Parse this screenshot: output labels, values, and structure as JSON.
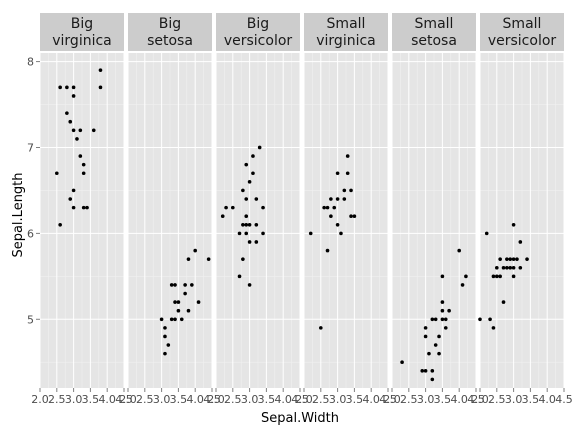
{
  "chart_data": {
    "type": "scatter",
    "facet": "panels",
    "xlabel": "Sepal.Width",
    "ylabel": "Sepal.Length",
    "xlim": [
      2.0,
      4.5
    ],
    "ylim": [
      4.2,
      8.1
    ],
    "x_ticks": [
      "2.0",
      "2.5",
      "3.0",
      "3.5",
      "4.0",
      "4.5"
    ],
    "y_ticks": [
      "5",
      "6",
      "7",
      "8"
    ],
    "grid": true,
    "legend": "none",
    "colors": {
      "strip_bg": "#cccccc",
      "panel_bg": "#e5e5e5",
      "grid_major": "#ffffff",
      "grid_minor": "#f2f2f2",
      "point": "#000000"
    },
    "panels": [
      {
        "label": [
          "Big",
          "virginica"
        ],
        "points": [
          [
            2.5,
            6.7
          ],
          [
            2.6,
            6.1
          ],
          [
            2.6,
            7.7
          ],
          [
            2.8,
            7.7
          ],
          [
            2.8,
            7.4
          ],
          [
            2.9,
            7.3
          ],
          [
            2.9,
            6.4
          ],
          [
            3.0,
            7.7
          ],
          [
            3.0,
            7.6
          ],
          [
            3.0,
            7.2
          ],
          [
            3.0,
            6.5
          ],
          [
            3.0,
            6.3
          ],
          [
            3.1,
            7.1
          ],
          [
            3.2,
            7.2
          ],
          [
            3.2,
            6.9
          ],
          [
            3.3,
            6.8
          ],
          [
            3.3,
            6.7
          ],
          [
            3.3,
            6.3
          ],
          [
            3.4,
            6.3
          ],
          [
            3.6,
            7.2
          ],
          [
            3.8,
            7.9
          ],
          [
            3.8,
            7.7
          ]
        ]
      },
      {
        "label": [
          "Big",
          "setosa"
        ],
        "points": [
          [
            3.0,
            5.0
          ],
          [
            3.1,
            4.9
          ],
          [
            3.1,
            4.8
          ],
          [
            3.1,
            4.6
          ],
          [
            3.2,
            4.7
          ],
          [
            3.3,
            5.4
          ],
          [
            3.3,
            5.0
          ],
          [
            3.4,
            5.4
          ],
          [
            3.4,
            5.2
          ],
          [
            3.4,
            5.0
          ],
          [
            3.5,
            5.2
          ],
          [
            3.5,
            5.1
          ],
          [
            3.6,
            5.0
          ],
          [
            3.7,
            5.4
          ],
          [
            3.7,
            5.3
          ],
          [
            3.8,
            5.7
          ],
          [
            3.8,
            5.1
          ],
          [
            3.9,
            5.4
          ],
          [
            4.0,
            5.8
          ],
          [
            4.1,
            5.2
          ],
          [
            4.4,
            5.7
          ]
        ]
      },
      {
        "label": [
          "Big",
          "versicolor"
        ],
        "points": [
          [
            2.2,
            6.2
          ],
          [
            2.3,
            6.3
          ],
          [
            2.5,
            6.3
          ],
          [
            2.7,
            6.0
          ],
          [
            2.7,
            5.5
          ],
          [
            2.8,
            6.1
          ],
          [
            2.8,
            6.5
          ],
          [
            2.8,
            5.7
          ],
          [
            2.9,
            6.8
          ],
          [
            2.9,
            6.4
          ],
          [
            2.9,
            6.2
          ],
          [
            2.9,
            6.1
          ],
          [
            2.9,
            6.0
          ],
          [
            3.0,
            6.6
          ],
          [
            3.0,
            6.1
          ],
          [
            3.0,
            5.9
          ],
          [
            3.0,
            5.4
          ],
          [
            3.1,
            6.7
          ],
          [
            3.1,
            6.9
          ],
          [
            3.2,
            6.4
          ],
          [
            3.2,
            5.9
          ],
          [
            3.2,
            6.1
          ],
          [
            3.3,
            7.0
          ],
          [
            3.4,
            6.3
          ],
          [
            3.4,
            6.0
          ]
        ]
      },
      {
        "label": [
          "Small",
          "virginica"
        ],
        "points": [
          [
            2.2,
            6.0
          ],
          [
            2.5,
            4.9
          ],
          [
            2.6,
            6.3
          ],
          [
            2.7,
            6.3
          ],
          [
            2.7,
            5.8
          ],
          [
            2.8,
            6.4
          ],
          [
            2.8,
            6.2
          ],
          [
            2.9,
            6.3
          ],
          [
            3.0,
            6.7
          ],
          [
            3.0,
            6.4
          ],
          [
            3.0,
            6.1
          ],
          [
            3.1,
            6.0
          ],
          [
            3.2,
            6.5
          ],
          [
            3.2,
            6.4
          ],
          [
            3.3,
            6.7
          ],
          [
            3.3,
            6.9
          ],
          [
            3.4,
            6.2
          ],
          [
            3.4,
            6.5
          ],
          [
            3.5,
            6.2
          ]
        ]
      },
      {
        "label": [
          "Small",
          "setosa"
        ],
        "points": [
          [
            2.3,
            4.5
          ],
          [
            2.9,
            4.4
          ],
          [
            3.0,
            4.4
          ],
          [
            3.0,
            4.8
          ],
          [
            3.0,
            4.9
          ],
          [
            3.1,
            4.6
          ],
          [
            3.2,
            4.4
          ],
          [
            3.2,
            4.3
          ],
          [
            3.2,
            5.0
          ],
          [
            3.3,
            4.7
          ],
          [
            3.3,
            5.0
          ],
          [
            3.4,
            4.6
          ],
          [
            3.4,
            4.8
          ],
          [
            3.5,
            5.1
          ],
          [
            3.5,
            5.0
          ],
          [
            3.5,
            5.5
          ],
          [
            3.5,
            5.2
          ],
          [
            3.6,
            4.9
          ],
          [
            3.6,
            5.0
          ],
          [
            3.7,
            5.1
          ],
          [
            4.0,
            5.8
          ],
          [
            4.1,
            5.4
          ],
          [
            4.2,
            5.5
          ]
        ]
      },
      {
        "label": [
          "Small",
          "versicolor"
        ],
        "points": [
          [
            2.0,
            5.0
          ],
          [
            2.2,
            6.0
          ],
          [
            2.3,
            5.0
          ],
          [
            2.4,
            4.9
          ],
          [
            2.4,
            5.5
          ],
          [
            2.5,
            5.5
          ],
          [
            2.5,
            5.6
          ],
          [
            2.6,
            5.5
          ],
          [
            2.6,
            5.7
          ],
          [
            2.7,
            5.2
          ],
          [
            2.7,
            5.6
          ],
          [
            2.8,
            5.7
          ],
          [
            2.8,
            5.6
          ],
          [
            2.9,
            5.6
          ],
          [
            2.9,
            5.7
          ],
          [
            3.0,
            5.5
          ],
          [
            3.0,
            6.1
          ],
          [
            3.0,
            5.6
          ],
          [
            3.0,
            5.7
          ],
          [
            3.1,
            5.7
          ],
          [
            3.2,
            5.6
          ],
          [
            3.2,
            5.9
          ],
          [
            3.4,
            5.7
          ]
        ]
      }
    ]
  }
}
